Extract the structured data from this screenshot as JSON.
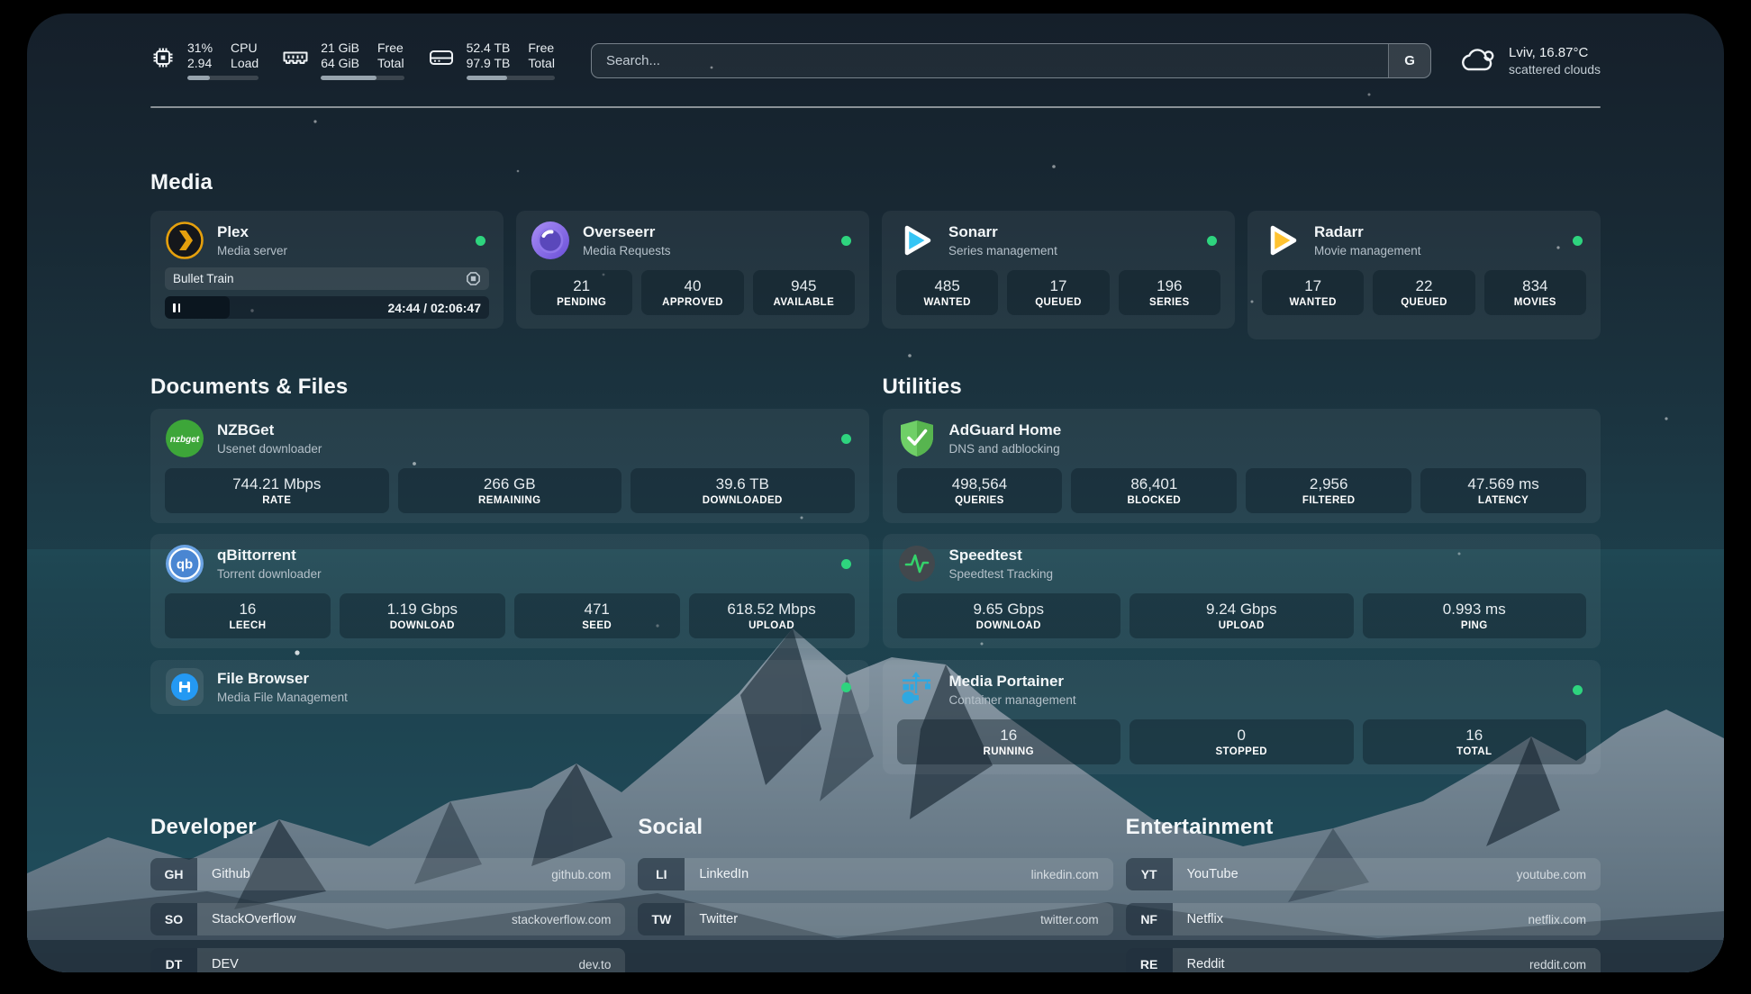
{
  "topbar": {
    "cpu": {
      "icon": "cpu-icon",
      "value1": "31%",
      "value2": "2.94",
      "label1": "CPU",
      "label2": "Load",
      "progress_percent": 31
    },
    "memory": {
      "icon": "memory-icon",
      "value1": "21 GiB",
      "value2": "64 GiB",
      "label1": "Free",
      "label2": "Total",
      "progress_percent": 67
    },
    "disk": {
      "icon": "disk-icon",
      "value1": "52.4 TB",
      "value2": "97.9 TB",
      "label1": "Free",
      "label2": "Total",
      "progress_percent": 46
    },
    "search": {
      "placeholder": "Search...",
      "provider_button": "G"
    },
    "weather": {
      "icon": "cloud-icon",
      "line1": "Lviv, 16.87°C",
      "line2": "scattered clouds"
    }
  },
  "sections": {
    "media": {
      "title": "Media",
      "cards": [
        {
          "name": "Plex",
          "subtitle": "Media server",
          "icon": "plex-icon",
          "online": true,
          "now_playing": {
            "title": "Bullet Train",
            "time": "24:44 / 02:06:47",
            "progress_percent": 20
          }
        },
        {
          "name": "Overseerr",
          "subtitle": "Media Requests",
          "icon": "overseerr-icon",
          "online": true,
          "stats": [
            {
              "value": "21",
              "label": "PENDING"
            },
            {
              "value": "40",
              "label": "APPROVED"
            },
            {
              "value": "945",
              "label": "AVAILABLE"
            }
          ]
        },
        {
          "name": "Sonarr",
          "subtitle": "Series management",
          "icon": "sonarr-icon",
          "online": true,
          "stats": [
            {
              "value": "485",
              "label": "WANTED"
            },
            {
              "value": "17",
              "label": "QUEUED"
            },
            {
              "value": "196",
              "label": "SERIES"
            }
          ]
        },
        {
          "name": "Radarr",
          "subtitle": "Movie management",
          "icon": "radarr-icon",
          "online": true,
          "stats": [
            {
              "value": "17",
              "label": "WANTED"
            },
            {
              "value": "22",
              "label": "QUEUED"
            },
            {
              "value": "834",
              "label": "MOVIES"
            }
          ]
        }
      ]
    },
    "documents": {
      "title": "Documents & Files",
      "cards": [
        {
          "name": "NZBGet",
          "subtitle": "Usenet downloader",
          "icon": "nzbget-icon",
          "online": true,
          "stats": [
            {
              "value": "744.21 Mbps",
              "label": "RATE"
            },
            {
              "value": "266 GB",
              "label": "REMAINING"
            },
            {
              "value": "39.6 TB",
              "label": "DOWNLOADED"
            }
          ]
        },
        {
          "name": "qBittorrent",
          "subtitle": "Torrent downloader",
          "icon": "qbittorrent-icon",
          "online": true,
          "stats": [
            {
              "value": "16",
              "label": "LEECH"
            },
            {
              "value": "1.19 Gbps",
              "label": "DOWNLOAD"
            },
            {
              "value": "471",
              "label": "SEED"
            },
            {
              "value": "618.52 Mbps",
              "label": "UPLOAD"
            }
          ]
        },
        {
          "name": "File Browser",
          "subtitle": "Media File Management",
          "icon": "filebrowser-icon",
          "online": true
        }
      ]
    },
    "utilities": {
      "title": "Utilities",
      "cards": [
        {
          "name": "AdGuard Home",
          "subtitle": "DNS and adblocking",
          "icon": "adguard-icon",
          "online": false,
          "stats": [
            {
              "value": "498,564",
              "label": "QUERIES"
            },
            {
              "value": "86,401",
              "label": "BLOCKED"
            },
            {
              "value": "2,956",
              "label": "FILTERED"
            },
            {
              "value": "47.569 ms",
              "label": "LATENCY"
            }
          ]
        },
        {
          "name": "Speedtest",
          "subtitle": "Speedtest Tracking",
          "icon": "speedtest-icon",
          "online": false,
          "stats": [
            {
              "value": "9.65 Gbps",
              "label": "DOWNLOAD"
            },
            {
              "value": "9.24 Gbps",
              "label": "UPLOAD"
            },
            {
              "value": "0.993 ms",
              "label": "PING"
            }
          ]
        },
        {
          "name": "Media Portainer",
          "subtitle": "Container management",
          "icon": "portainer-icon",
          "online": true,
          "stats": [
            {
              "value": "16",
              "label": "RUNNING"
            },
            {
              "value": "0",
              "label": "STOPPED"
            },
            {
              "value": "16",
              "label": "TOTAL"
            }
          ]
        }
      ]
    },
    "developer": {
      "title": "Developer",
      "links": [
        {
          "abbr": "GH",
          "name": "Github",
          "url": "github.com"
        },
        {
          "abbr": "SO",
          "name": "StackOverflow",
          "url": "stackoverflow.com"
        },
        {
          "abbr": "DT",
          "name": "DEV",
          "url": "dev.to"
        }
      ]
    },
    "social": {
      "title": "Social",
      "links": [
        {
          "abbr": "LI",
          "name": "LinkedIn",
          "url": "linkedin.com"
        },
        {
          "abbr": "TW",
          "name": "Twitter",
          "url": "twitter.com"
        }
      ]
    },
    "entertainment": {
      "title": "Entertainment",
      "links": [
        {
          "abbr": "YT",
          "name": "YouTube",
          "url": "youtube.com"
        },
        {
          "abbr": "NF",
          "name": "Netflix",
          "url": "netflix.com"
        },
        {
          "abbr": "RE",
          "name": "Reddit",
          "url": "reddit.com"
        }
      ]
    }
  },
  "colors": {
    "status_online": "#2ed47e",
    "plex": "#e5a00d",
    "overseerr": "#8a6df0",
    "sonarr": "#35c5f5",
    "radarr": "#ffc230",
    "nzbget": "#3da639",
    "qbittorrent": "#4f8fd9",
    "adguard": "#67c25f",
    "speedtest": "#34d26b",
    "portainer": "#2fa8e1",
    "filebrowser": "#2499f3"
  }
}
